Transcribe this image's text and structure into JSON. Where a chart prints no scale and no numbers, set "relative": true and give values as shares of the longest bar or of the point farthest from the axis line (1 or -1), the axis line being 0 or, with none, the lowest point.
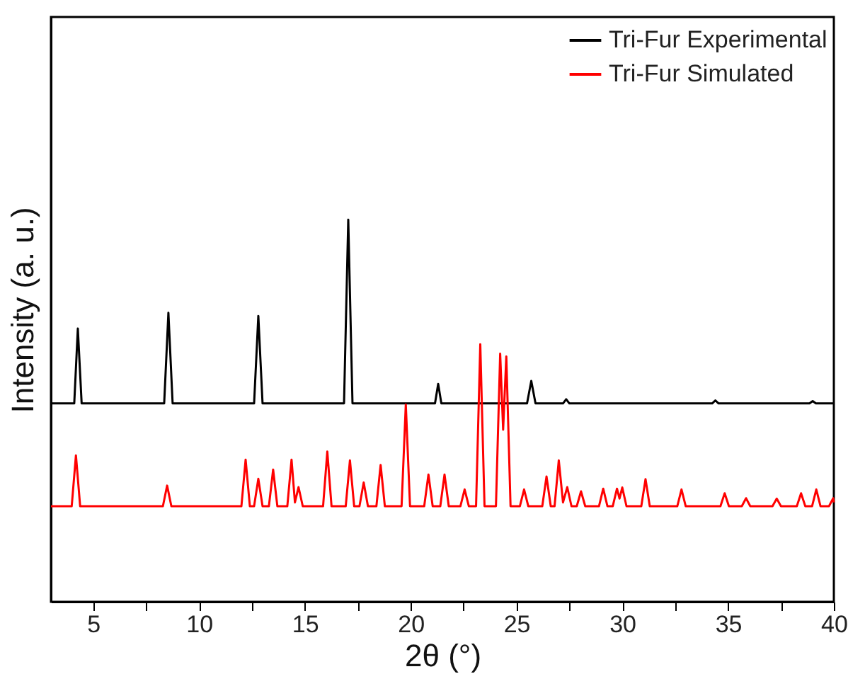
{
  "chart_data": {
    "type": "line",
    "relative": true,
    "xlabel": "2θ (°)",
    "ylabel": "Intensity (a. u.)",
    "xlim": [
      3,
      40
    ],
    "xticks": [
      5,
      {
        "value": 7.5,
        "label": null
      },
      10,
      {
        "value": 12.5,
        "label": null
      },
      15,
      {
        "value": 17.5,
        "label": null
      },
      20,
      {
        "value": 22.5,
        "label": null
      },
      25,
      {
        "value": 27.5,
        "label": null
      },
      30,
      {
        "value": 32.5,
        "label": null
      },
      35,
      {
        "value": 37.5,
        "label": null
      },
      40
    ],
    "grid": false,
    "legend": "top right",
    "line_style": "solid",
    "marker": "none",
    "series": [
      {
        "name": "Tri-Fur Experimental",
        "color": "#000000",
        "x": [
          3,
          4.1,
          4.27,
          4.45,
          8.35,
          8.55,
          8.75,
          12.6,
          12.8,
          13.0,
          16.85,
          17.05,
          17.25,
          21.15,
          21.3,
          21.45,
          25.5,
          25.7,
          25.9,
          27.2,
          27.35,
          27.5,
          34.25,
          34.4,
          34.55,
          38.85,
          39.0,
          39.15,
          40
        ],
        "values": [
          0.519,
          0.519,
          0.715,
          0.519,
          0.519,
          0.756,
          0.519,
          0.519,
          0.748,
          0.519,
          0.519,
          1.0,
          0.519,
          0.519,
          0.57,
          0.519,
          0.519,
          0.578,
          0.519,
          0.519,
          0.53,
          0.519,
          0.519,
          0.527,
          0.519,
          0.519,
          0.525,
          0.519,
          0.519
        ]
      },
      {
        "name": "Tri-Fur Simulated",
        "color": "#ff0000",
        "x": [
          3,
          3.98,
          4.18,
          4.38,
          8.29,
          8.49,
          8.69,
          12.0,
          12.2,
          12.4,
          12.6,
          12.8,
          13.0,
          13.3,
          13.5,
          13.7,
          14.17,
          14.37,
          14.53,
          14.7,
          14.9,
          15.86,
          16.06,
          16.26,
          16.93,
          17.13,
          17.33,
          17.58,
          17.78,
          17.98,
          18.38,
          18.58,
          18.78,
          19.57,
          19.77,
          19.97,
          20.64,
          20.84,
          21.04,
          21.4,
          21.6,
          21.8,
          22.35,
          22.55,
          22.75,
          23.09,
          23.29,
          23.49,
          24.03,
          24.23,
          24.37,
          24.52,
          24.72,
          25.16,
          25.36,
          25.56,
          26.22,
          26.42,
          26.62,
          26.8,
          27.0,
          27.2,
          27.4,
          27.6,
          27.85,
          28.05,
          28.25,
          28.9,
          29.1,
          29.3,
          29.55,
          29.75,
          29.87,
          30.0,
          30.2,
          30.9,
          31.1,
          31.3,
          32.6,
          32.8,
          33.0,
          34.64,
          34.84,
          35.04,
          35.65,
          35.85,
          36.05,
          37.1,
          37.3,
          37.5,
          38.25,
          38.45,
          38.65,
          38.97,
          39.17,
          39.37,
          39.77,
          39.97,
          40
        ],
        "values": [
          0.25,
          0.25,
          0.383,
          0.25,
          0.25,
          0.304,
          0.25,
          0.25,
          0.372,
          0.25,
          0.25,
          0.322,
          0.25,
          0.25,
          0.346,
          0.25,
          0.25,
          0.372,
          0.26,
          0.3,
          0.25,
          0.25,
          0.393,
          0.25,
          0.25,
          0.37,
          0.25,
          0.25,
          0.312,
          0.25,
          0.25,
          0.358,
          0.25,
          0.25,
          0.516,
          0.25,
          0.25,
          0.333,
          0.25,
          0.25,
          0.333,
          0.25,
          0.25,
          0.294,
          0.25,
          0.25,
          0.674,
          0.25,
          0.25,
          0.649,
          0.45,
          0.642,
          0.25,
          0.25,
          0.294,
          0.25,
          0.25,
          0.328,
          0.25,
          0.25,
          0.37,
          0.26,
          0.3,
          0.25,
          0.25,
          0.289,
          0.25,
          0.25,
          0.296,
          0.25,
          0.25,
          0.296,
          0.27,
          0.299,
          0.25,
          0.25,
          0.321,
          0.25,
          0.25,
          0.294,
          0.25,
          0.25,
          0.284,
          0.25,
          0.25,
          0.271,
          0.25,
          0.25,
          0.27,
          0.25,
          0.25,
          0.284,
          0.25,
          0.25,
          0.294,
          0.25,
          0.25,
          0.271,
          0.26
        ]
      }
    ]
  }
}
